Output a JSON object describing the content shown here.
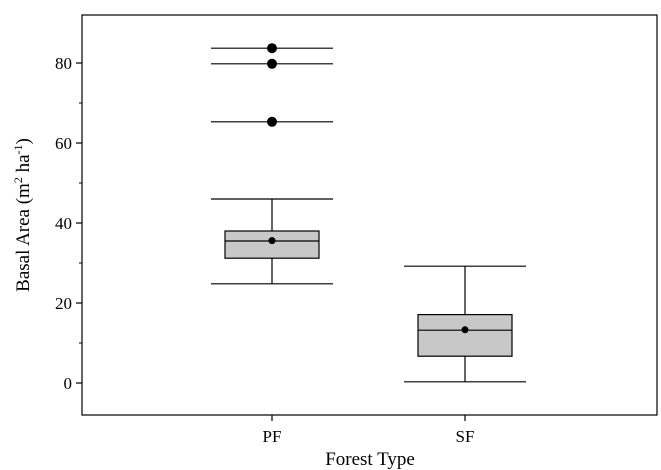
{
  "chart_data": {
    "type": "box",
    "title": "",
    "xlabel": "Forest Type",
    "ylabel": {
      "main": "Basal Area (m",
      "sup1": "2",
      "mid": " ha",
      "sup2": "-1",
      "end": ")"
    },
    "ylim": [
      -8,
      92
    ],
    "yticks": [
      0,
      20,
      40,
      60,
      80
    ],
    "categories": [
      "PF",
      "SF"
    ],
    "boxes": [
      {
        "category": "PF",
        "whisker_low": 24.8,
        "q1": 31.2,
        "median": 35.5,
        "q3": 38.0,
        "whisker_high": 46.0,
        "mean": 35.6,
        "outliers": [
          65.3,
          79.8,
          83.7
        ]
      },
      {
        "category": "SF",
        "whisker_low": 0.3,
        "q1": 6.7,
        "median": 13.2,
        "q3": 17.1,
        "whisker_high": 29.2,
        "mean": 13.3,
        "outliers": []
      }
    ],
    "box_fill": "#c8c8c8",
    "grid": false
  }
}
